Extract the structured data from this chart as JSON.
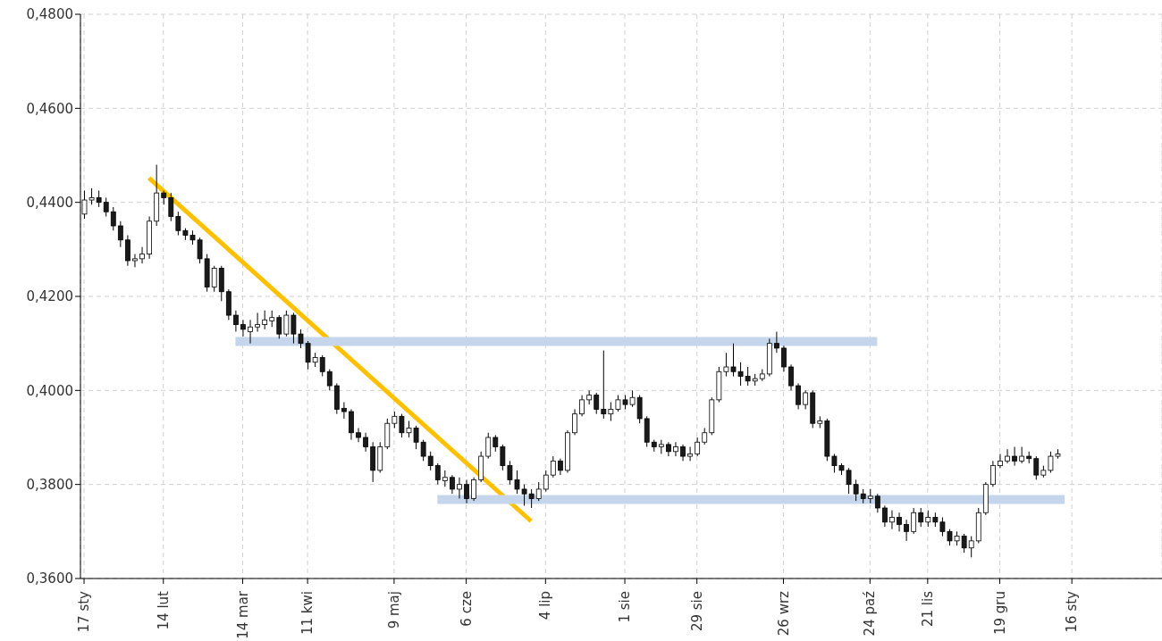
{
  "chart_data": {
    "type": "candlestick",
    "categories": [
      "17 sty",
      null,
      null,
      null,
      null,
      null,
      null,
      null,
      null,
      null,
      null,
      "14 lut",
      null,
      null,
      null,
      null,
      null,
      null,
      null,
      null,
      null,
      null,
      "14 mar",
      null,
      null,
      null,
      null,
      null,
      null,
      null,
      null,
      "11 kwi",
      null,
      null,
      null,
      null,
      null,
      null,
      null,
      null,
      null,
      null,
      null,
      "9 maj",
      null,
      null,
      null,
      null,
      null,
      null,
      null,
      null,
      null,
      "6 cze",
      null,
      null,
      null,
      null,
      null,
      null,
      null,
      null,
      null,
      null,
      "4 lip",
      null,
      null,
      null,
      null,
      null,
      null,
      null,
      null,
      null,
      null,
      "1 sie",
      null,
      null,
      null,
      null,
      null,
      null,
      null,
      null,
      null,
      "29 sie",
      null,
      null,
      null,
      null,
      null,
      null,
      null,
      null,
      null,
      null,
      null,
      "26 wrz",
      null,
      null,
      null,
      null,
      null,
      null,
      null,
      null,
      null,
      null,
      null,
      "24 paź",
      null,
      null,
      null,
      null,
      null,
      null,
      null,
      "21 lis",
      null,
      null,
      null,
      null,
      null,
      null,
      null,
      null,
      null,
      "19 gru",
      null,
      null,
      null,
      null,
      null,
      null,
      null,
      null,
      null,
      "16 sty",
      null,
      null,
      null,
      null,
      null,
      null,
      null,
      null,
      null,
      null,
      null,
      null
    ],
    "ohlc": [
      [
        0.4375,
        0.4425,
        0.4365,
        0.4405
      ],
      [
        0.4405,
        0.443,
        0.4395,
        0.441
      ],
      [
        0.441,
        0.4425,
        0.439,
        0.44
      ],
      [
        0.44,
        0.441,
        0.437,
        0.438
      ],
      [
        0.438,
        0.439,
        0.434,
        0.435
      ],
      [
        0.435,
        0.436,
        0.4305,
        0.432
      ],
      [
        0.432,
        0.433,
        0.4265,
        0.4276
      ],
      [
        0.4276,
        0.429,
        0.4262,
        0.428
      ],
      [
        0.428,
        0.4305,
        0.427,
        0.429
      ],
      [
        0.429,
        0.437,
        0.428,
        0.436
      ],
      [
        0.436,
        0.448,
        0.435,
        0.442
      ],
      [
        0.442,
        0.4425,
        0.4395,
        0.441
      ],
      [
        0.441,
        0.442,
        0.436,
        0.437
      ],
      [
        0.437,
        0.438,
        0.433,
        0.434
      ],
      [
        0.434,
        0.4345,
        0.432,
        0.433
      ],
      [
        0.433,
        0.434,
        0.431,
        0.432
      ],
      [
        0.432,
        0.4325,
        0.427,
        0.428
      ],
      [
        0.428,
        0.429,
        0.421,
        0.422
      ],
      [
        0.422,
        0.4265,
        0.421,
        0.426
      ],
      [
        0.426,
        0.4265,
        0.419,
        0.421
      ],
      [
        0.421,
        0.4215,
        0.415,
        0.416
      ],
      [
        0.416,
        0.417,
        0.4125,
        0.414
      ],
      [
        0.414,
        0.415,
        0.4115,
        0.413
      ],
      [
        0.4125,
        0.415,
        0.41,
        0.4135
      ],
      [
        0.4135,
        0.4165,
        0.4125,
        0.414
      ],
      [
        0.414,
        0.417,
        0.413,
        0.415
      ],
      [
        0.4148,
        0.417,
        0.4135,
        0.4155
      ],
      [
        0.4155,
        0.416,
        0.411,
        0.412
      ],
      [
        0.412,
        0.417,
        0.4115,
        0.416
      ],
      [
        0.416,
        0.4165,
        0.41,
        0.412
      ],
      [
        0.412,
        0.413,
        0.409,
        0.41
      ],
      [
        0.41,
        0.4105,
        0.4045,
        0.406
      ],
      [
        0.406,
        0.408,
        0.405,
        0.407
      ],
      [
        0.407,
        0.4075,
        0.403,
        0.404
      ],
      [
        0.404,
        0.4045,
        0.4,
        0.401
      ],
      [
        0.401,
        0.4015,
        0.395,
        0.396
      ],
      [
        0.3962,
        0.3975,
        0.394,
        0.3955
      ],
      [
        0.3955,
        0.396,
        0.3895,
        0.391
      ],
      [
        0.391,
        0.392,
        0.389,
        0.39
      ],
      [
        0.39,
        0.391,
        0.387,
        0.388
      ],
      [
        0.388,
        0.389,
        0.3805,
        0.383
      ],
      [
        0.383,
        0.389,
        0.3825,
        0.388
      ],
      [
        0.388,
        0.394,
        0.3875,
        0.393
      ],
      [
        0.393,
        0.3955,
        0.392,
        0.3945
      ],
      [
        0.3945,
        0.395,
        0.39,
        0.391
      ],
      [
        0.391,
        0.3935,
        0.39,
        0.392
      ],
      [
        0.392,
        0.3925,
        0.3875,
        0.389
      ],
      [
        0.389,
        0.3895,
        0.385,
        0.386
      ],
      [
        0.386,
        0.387,
        0.383,
        0.384
      ],
      [
        0.384,
        0.3845,
        0.38,
        0.381
      ],
      [
        0.3808,
        0.383,
        0.3795,
        0.3815
      ],
      [
        0.3815,
        0.382,
        0.378,
        0.379
      ],
      [
        0.379,
        0.3815,
        0.377,
        0.38
      ],
      [
        0.38,
        0.381,
        0.376,
        0.377
      ],
      [
        0.377,
        0.3815,
        0.3765,
        0.381
      ],
      [
        0.381,
        0.387,
        0.3805,
        0.386
      ],
      [
        0.386,
        0.391,
        0.3855,
        0.39
      ],
      [
        0.39,
        0.3905,
        0.387,
        0.388
      ],
      [
        0.388,
        0.3885,
        0.383,
        0.384
      ],
      [
        0.384,
        0.385,
        0.38,
        0.381
      ],
      [
        0.381,
        0.383,
        0.378,
        0.379
      ],
      [
        0.379,
        0.38,
        0.3755,
        0.378
      ],
      [
        0.378,
        0.379,
        0.375,
        0.377
      ],
      [
        0.377,
        0.3805,
        0.3765,
        0.379
      ],
      [
        0.379,
        0.383,
        0.3785,
        0.382
      ],
      [
        0.382,
        0.386,
        0.3815,
        0.385
      ],
      [
        0.385,
        0.3855,
        0.382,
        0.383
      ],
      [
        0.383,
        0.3915,
        0.3825,
        0.391
      ],
      [
        0.391,
        0.396,
        0.3905,
        0.395
      ],
      [
        0.395,
        0.399,
        0.3945,
        0.398
      ],
      [
        0.398,
        0.4,
        0.397,
        0.399
      ],
      [
        0.399,
        0.3995,
        0.395,
        0.396
      ],
      [
        0.396,
        0.4085,
        0.394,
        0.395
      ],
      [
        0.395,
        0.3975,
        0.3935,
        0.396
      ],
      [
        0.396,
        0.399,
        0.3955,
        0.398
      ],
      [
        0.398,
        0.399,
        0.396,
        0.397
      ],
      [
        0.397,
        0.4,
        0.3965,
        0.3985
      ],
      [
        0.3985,
        0.399,
        0.393,
        0.394
      ],
      [
        0.394,
        0.3945,
        0.388,
        0.389
      ],
      [
        0.389,
        0.3895,
        0.387,
        0.388
      ],
      [
        0.388,
        0.3895,
        0.3865,
        0.3885
      ],
      [
        0.3885,
        0.389,
        0.386,
        0.387
      ],
      [
        0.387,
        0.389,
        0.386,
        0.388
      ],
      [
        0.388,
        0.3885,
        0.385,
        0.386
      ],
      [
        0.386,
        0.388,
        0.385,
        0.3865
      ],
      [
        0.3865,
        0.39,
        0.386,
        0.389
      ],
      [
        0.389,
        0.392,
        0.3885,
        0.391
      ],
      [
        0.391,
        0.3985,
        0.3905,
        0.398
      ],
      [
        0.398,
        0.405,
        0.3975,
        0.404
      ],
      [
        0.404,
        0.408,
        0.403,
        0.405
      ],
      [
        0.405,
        0.41,
        0.403,
        0.404
      ],
      [
        0.404,
        0.406,
        0.401,
        0.403
      ],
      [
        0.403,
        0.405,
        0.401,
        0.402
      ],
      [
        0.402,
        0.4035,
        0.401,
        0.4025
      ],
      [
        0.4025,
        0.4045,
        0.402,
        0.4035
      ],
      [
        0.4035,
        0.411,
        0.403,
        0.41
      ],
      [
        0.41,
        0.4125,
        0.408,
        0.409
      ],
      [
        0.409,
        0.4095,
        0.404,
        0.405
      ],
      [
        0.405,
        0.4055,
        0.4,
        0.401
      ],
      [
        0.401,
        0.4015,
        0.396,
        0.397
      ],
      [
        0.397,
        0.4,
        0.396,
        0.3995
      ],
      [
        0.3995,
        0.4,
        0.392,
        0.393
      ],
      [
        0.393,
        0.3945,
        0.392,
        0.3935
      ],
      [
        0.3935,
        0.394,
        0.385,
        0.386
      ],
      [
        0.386,
        0.3865,
        0.3825,
        0.384
      ],
      [
        0.384,
        0.3845,
        0.382,
        0.383
      ],
      [
        0.383,
        0.3835,
        0.378,
        0.38
      ],
      [
        0.38,
        0.381,
        0.3765,
        0.378
      ],
      [
        0.378,
        0.379,
        0.376,
        0.377
      ],
      [
        0.377,
        0.379,
        0.376,
        0.3775
      ],
      [
        0.3775,
        0.378,
        0.374,
        0.375
      ],
      [
        0.375,
        0.3755,
        0.371,
        0.372
      ],
      [
        0.372,
        0.3745,
        0.3705,
        0.373
      ],
      [
        0.373,
        0.374,
        0.37,
        0.3715
      ],
      [
        0.3715,
        0.3725,
        0.368,
        0.37
      ],
      [
        0.37,
        0.375,
        0.3695,
        0.374
      ],
      [
        0.374,
        0.375,
        0.371,
        0.372
      ],
      [
        0.372,
        0.3745,
        0.371,
        0.373
      ],
      [
        0.373,
        0.374,
        0.371,
        0.372
      ],
      [
        0.372,
        0.373,
        0.369,
        0.37
      ],
      [
        0.37,
        0.3705,
        0.367,
        0.368
      ],
      [
        0.368,
        0.37,
        0.367,
        0.369
      ],
      [
        0.369,
        0.3695,
        0.3655,
        0.3665
      ],
      [
        0.3665,
        0.369,
        0.3645,
        0.368
      ],
      [
        0.368,
        0.375,
        0.3675,
        0.374
      ],
      [
        0.374,
        0.3805,
        0.3735,
        0.38
      ],
      [
        0.38,
        0.385,
        0.3795,
        0.384
      ],
      [
        0.384,
        0.3865,
        0.3835,
        0.385
      ],
      [
        0.385,
        0.3875,
        0.3845,
        0.386
      ],
      [
        0.386,
        0.388,
        0.384,
        0.385
      ],
      [
        0.385,
        0.388,
        0.3845,
        0.386
      ],
      [
        0.386,
        0.387,
        0.3845,
        0.3855
      ],
      [
        0.3855,
        0.386,
        0.381,
        0.382
      ],
      [
        0.382,
        0.384,
        0.3815,
        0.383
      ],
      [
        0.383,
        0.387,
        0.3825,
        0.386
      ],
      [
        0.386,
        0.3875,
        0.3855,
        0.3865
      ],
      null,
      null,
      null,
      null,
      null,
      null,
      null,
      null,
      null,
      null,
      null,
      null,
      null,
      null
    ],
    "series": [
      {
        "type": "line",
        "color": "#ffc000",
        "values": [
          null,
          null,
          null,
          null,
          null,
          null,
          null,
          null,
          null,
          0.4452,
          null,
          null,
          null,
          null,
          null,
          null,
          null,
          null,
          null,
          null,
          null,
          null,
          null,
          null,
          null,
          null,
          null,
          null,
          null,
          null,
          null,
          null,
          null,
          null,
          null,
          null,
          null,
          null,
          null,
          null,
          null,
          null,
          null,
          null,
          null,
          null,
          null,
          null,
          null,
          null,
          null,
          null,
          null,
          null,
          null,
          null,
          null,
          null,
          null,
          null,
          null,
          null,
          0.3722,
          null,
          null,
          null,
          null,
          null,
          null,
          null,
          null,
          null,
          null,
          null,
          null,
          null,
          null,
          null,
          null,
          null,
          null,
          null,
          null,
          null,
          null,
          null,
          null,
          null,
          null,
          null,
          null,
          null,
          null,
          null,
          null,
          null,
          null,
          null,
          null,
          null,
          null,
          null,
          null,
          null,
          null,
          null,
          null,
          null,
          null,
          null,
          null,
          null,
          null,
          null,
          null,
          null,
          null,
          null,
          null,
          null,
          null,
          null,
          null,
          null,
          null,
          null,
          null,
          null,
          null,
          null,
          null,
          null,
          null,
          null,
          null,
          null,
          null,
          null,
          null,
          null,
          null,
          null,
          null,
          null,
          null,
          null,
          null,
          null,
          null,
          null
        ]
      },
      {
        "type": "line",
        "color": "#c5d6ec",
        "values": [
          null,
          null,
          null,
          null,
          null,
          null,
          null,
          null,
          null,
          null,
          null,
          null,
          null,
          null,
          null,
          null,
          null,
          null,
          null,
          null,
          null,
          0.4104,
          null,
          null,
          null,
          null,
          null,
          null,
          null,
          null,
          null,
          null,
          null,
          null,
          null,
          null,
          null,
          null,
          null,
          null,
          null,
          null,
          null,
          null,
          null,
          null,
          null,
          null,
          null,
          null,
          null,
          null,
          null,
          null,
          null,
          null,
          null,
          null,
          null,
          null,
          null,
          null,
          null,
          null,
          null,
          null,
          null,
          null,
          null,
          null,
          null,
          null,
          null,
          null,
          null,
          null,
          null,
          null,
          null,
          null,
          null,
          null,
          null,
          null,
          null,
          null,
          null,
          null,
          null,
          null,
          null,
          null,
          null,
          null,
          null,
          null,
          null,
          null,
          null,
          null,
          null,
          null,
          null,
          null,
          null,
          null,
          null,
          null,
          null,
          null,
          0.4104,
          null,
          null,
          null,
          null,
          null,
          null,
          null,
          null,
          null,
          null,
          null,
          null,
          null,
          null,
          null,
          null,
          null,
          null,
          null,
          null,
          null,
          null,
          null,
          null,
          null,
          null,
          null,
          null,
          null,
          null,
          null,
          null,
          null,
          null,
          null,
          null,
          null,
          null,
          null
        ]
      },
      {
        "type": "line",
        "color": "#c5d6ec",
        "values": [
          null,
          null,
          null,
          null,
          null,
          null,
          null,
          null,
          null,
          null,
          null,
          null,
          null,
          null,
          null,
          null,
          null,
          null,
          null,
          null,
          null,
          null,
          null,
          null,
          null,
          null,
          null,
          null,
          null,
          null,
          null,
          null,
          null,
          null,
          null,
          null,
          null,
          null,
          null,
          null,
          null,
          null,
          null,
          null,
          null,
          null,
          null,
          null,
          null,
          0.3768,
          null,
          null,
          null,
          null,
          null,
          null,
          null,
          null,
          null,
          null,
          null,
          null,
          null,
          null,
          null,
          null,
          null,
          null,
          null,
          null,
          null,
          null,
          null,
          null,
          null,
          null,
          null,
          null,
          null,
          null,
          null,
          null,
          null,
          null,
          null,
          null,
          null,
          null,
          null,
          null,
          null,
          null,
          null,
          null,
          null,
          null,
          null,
          null,
          null,
          null,
          null,
          null,
          null,
          null,
          null,
          null,
          null,
          null,
          null,
          null,
          null,
          null,
          null,
          null,
          null,
          null,
          null,
          null,
          null,
          null,
          null,
          null,
          null,
          null,
          null,
          null,
          null,
          null,
          null,
          null,
          null,
          null,
          null,
          null,
          null,
          null,
          0.3768,
          null,
          null,
          null,
          null,
          null,
          null,
          null,
          null,
          null,
          null,
          null,
          null,
          null
        ]
      }
    ],
    "ylim": [
      0.36,
      0.48
    ],
    "yticks": [
      {
        "value": 0.36,
        "label": "0,3600"
      },
      {
        "value": 0.38,
        "label": "0,3800"
      },
      {
        "value": 0.4,
        "label": "0,4000"
      },
      {
        "value": 0.42,
        "label": "0,4200"
      },
      {
        "value": 0.44,
        "label": "0,4400"
      },
      {
        "value": 0.46,
        "label": "0,4600"
      },
      {
        "value": 0.48,
        "label": "0,4800"
      }
    ],
    "grid": true
  }
}
